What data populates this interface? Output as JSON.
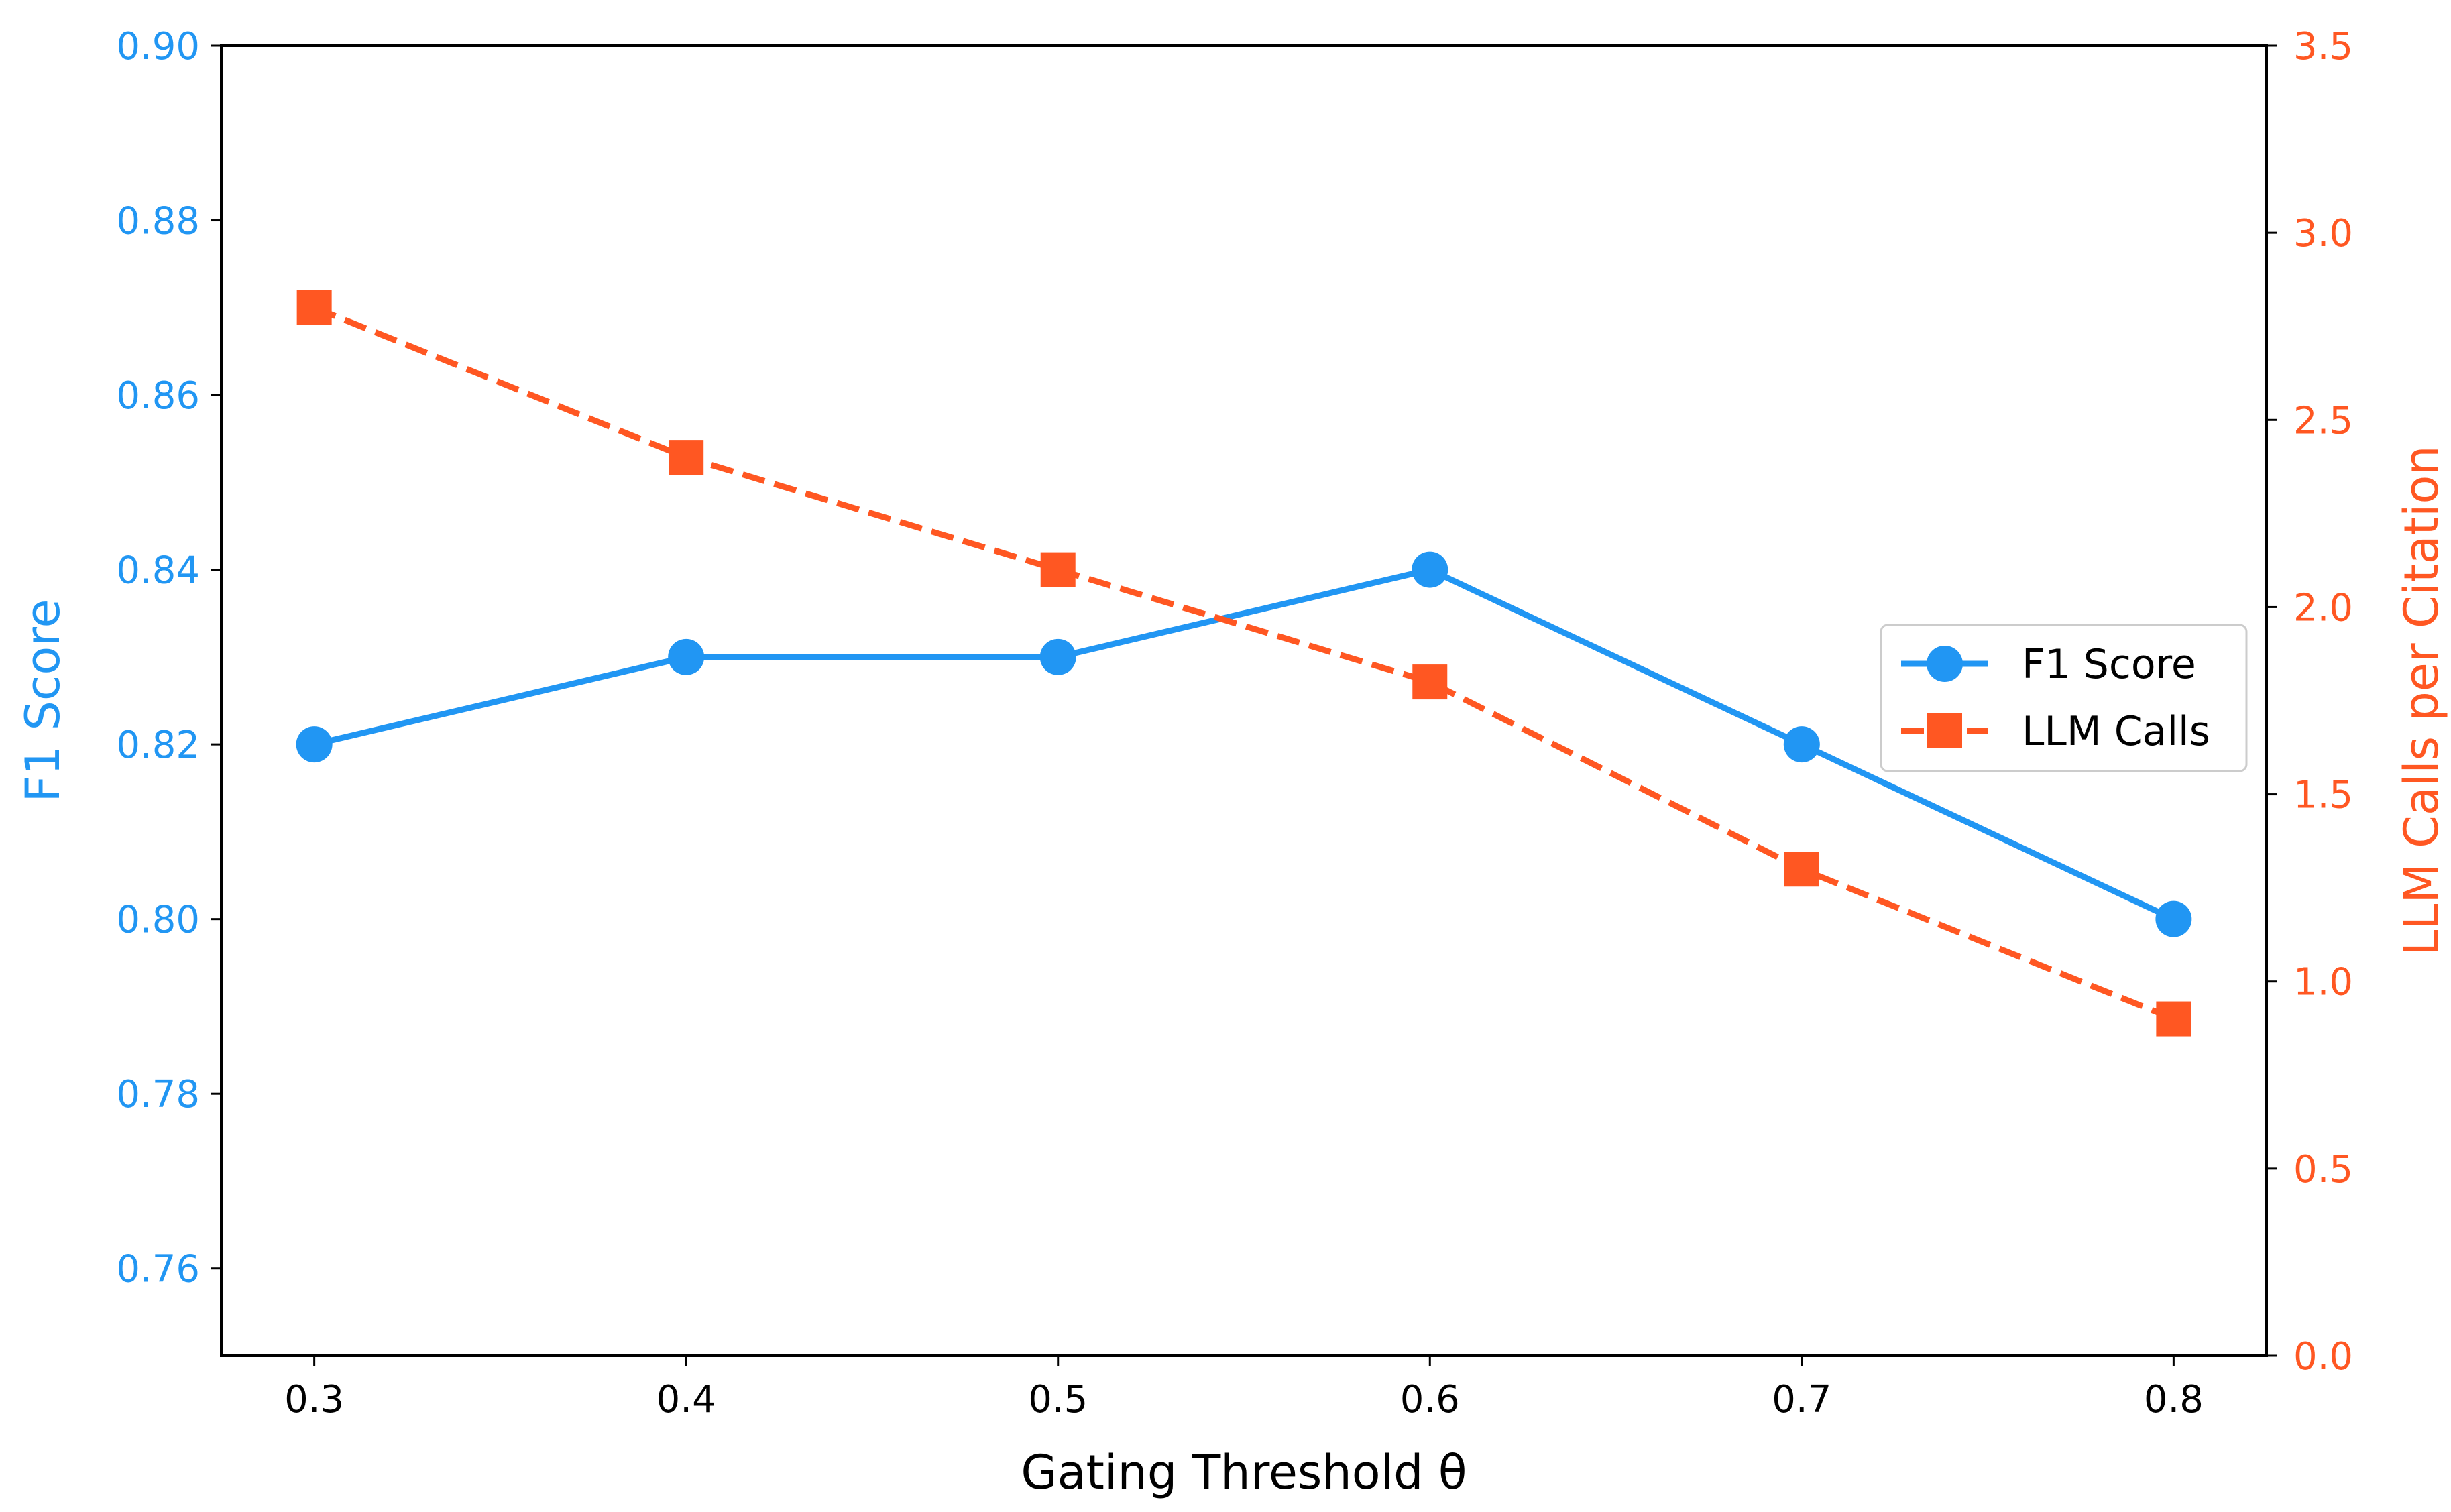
{
  "chart_data": {
    "type": "line",
    "title": "",
    "xlabel": "Gating Threshold θ",
    "x": [
      0.3,
      0.4,
      0.5,
      0.6,
      0.7,
      0.8
    ],
    "x_ticks": [
      "0.3",
      "0.4",
      "0.5",
      "0.6",
      "0.7",
      "0.8"
    ],
    "xlim": [
      0.275,
      0.825
    ],
    "left_axis": {
      "label": "F1 Score",
      "ylim": [
        0.75,
        0.9
      ],
      "ticks": [
        "0.76",
        "0.78",
        "0.80",
        "0.82",
        "0.84",
        "0.86",
        "0.88",
        "0.90"
      ],
      "color": "#2196F3"
    },
    "right_axis": {
      "label": "LLM Calls per Citation",
      "ylim": [
        0.0,
        3.5
      ],
      "ticks": [
        "0.0",
        "0.5",
        "1.0",
        "1.5",
        "2.0",
        "2.5",
        "3.0",
        "3.5"
      ],
      "color": "#FF5722"
    },
    "series": [
      {
        "name": "F1 Score",
        "axis": "left",
        "values": [
          0.82,
          0.83,
          0.83,
          0.84,
          0.82,
          0.8
        ],
        "color": "#2196F3",
        "marker": "circle",
        "line": "solid"
      },
      {
        "name": "LLM Calls",
        "axis": "right",
        "values": [
          2.8,
          2.4,
          2.1,
          1.8,
          1.3,
          0.9
        ],
        "color": "#FF5722",
        "marker": "square",
        "line": "dashed"
      }
    ],
    "legend": {
      "position": "center-right",
      "entries": [
        "F1 Score",
        "LLM Calls"
      ]
    },
    "grid": false
  }
}
